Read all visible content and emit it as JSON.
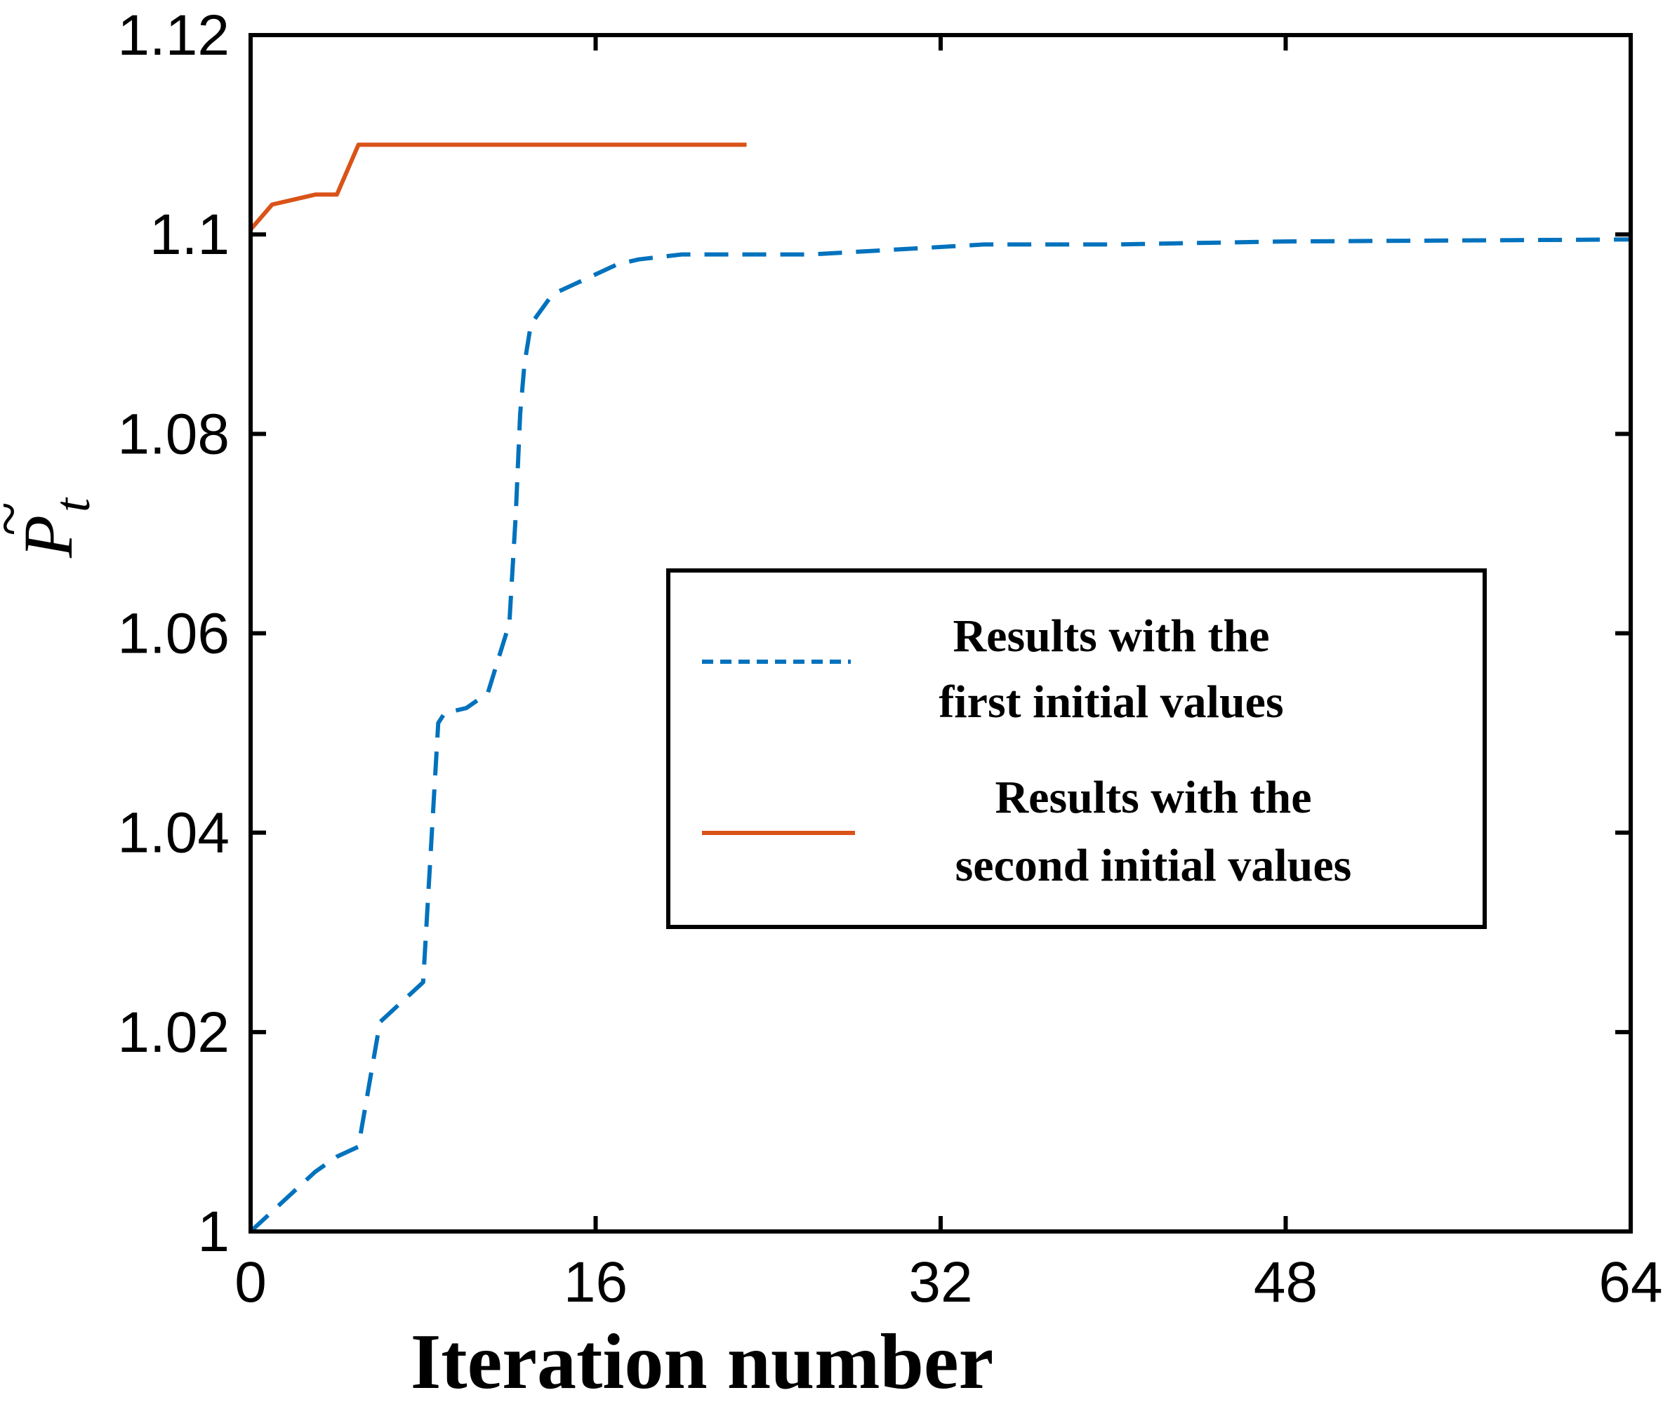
{
  "chart_data": {
    "type": "line",
    "title": "",
    "xlabel": "Iteration number",
    "ylabel": "P",
    "ylabel_subscript": "t",
    "ylabel_accent": "~",
    "xlim": [
      0,
      64
    ],
    "ylim": [
      1,
      1.12
    ],
    "xticks": [
      0,
      16,
      32,
      48,
      64
    ],
    "xtick_labels": [
      "0",
      "16",
      "32",
      "48",
      "64"
    ],
    "yticks": [
      1,
      1.02,
      1.04,
      1.06,
      1.08,
      1.1,
      1.12
    ],
    "ytick_labels": [
      "1",
      "1.02",
      "1.04",
      "1.06",
      "1.08",
      "1.1",
      "1.12"
    ],
    "grid": false,
    "legend_position": "center-right",
    "series": [
      {
        "name": "Results with the first initial values",
        "legend_lines": [
          "Results with the",
          "first initial values"
        ],
        "color": "#0072BD",
        "style": "dashed",
        "x": [
          0,
          1,
          2,
          3,
          4,
          5,
          6,
          7,
          8,
          8.7,
          9,
          10,
          11,
          12,
          12.3,
          12.5,
          12.7,
          13,
          14,
          15,
          16,
          17,
          18,
          20,
          22,
          26,
          30,
          34,
          40,
          48,
          56,
          64
        ],
        "y": [
          1.0,
          1.002,
          1.004,
          1.006,
          1.0075,
          1.0085,
          1.021,
          1.023,
          1.025,
          1.051,
          1.052,
          1.0525,
          1.054,
          1.061,
          1.072,
          1.082,
          1.087,
          1.091,
          1.094,
          1.095,
          1.096,
          1.097,
          1.0975,
          1.098,
          1.098,
          1.098,
          1.0985,
          1.099,
          1.099,
          1.0993,
          1.0994,
          1.0995
        ]
      },
      {
        "name": "Results with the second initial values",
        "legend_lines": [
          "Results with the",
          "second initial values"
        ],
        "color": "#D95319",
        "style": "solid",
        "x": [
          0,
          1,
          2,
          3,
          4,
          5,
          6,
          7,
          8,
          12,
          16,
          20,
          23
        ],
        "y": [
          1.1005,
          1.103,
          1.1035,
          1.104,
          1.104,
          1.109,
          1.109,
          1.109,
          1.109,
          1.109,
          1.109,
          1.109,
          1.109
        ]
      }
    ]
  }
}
